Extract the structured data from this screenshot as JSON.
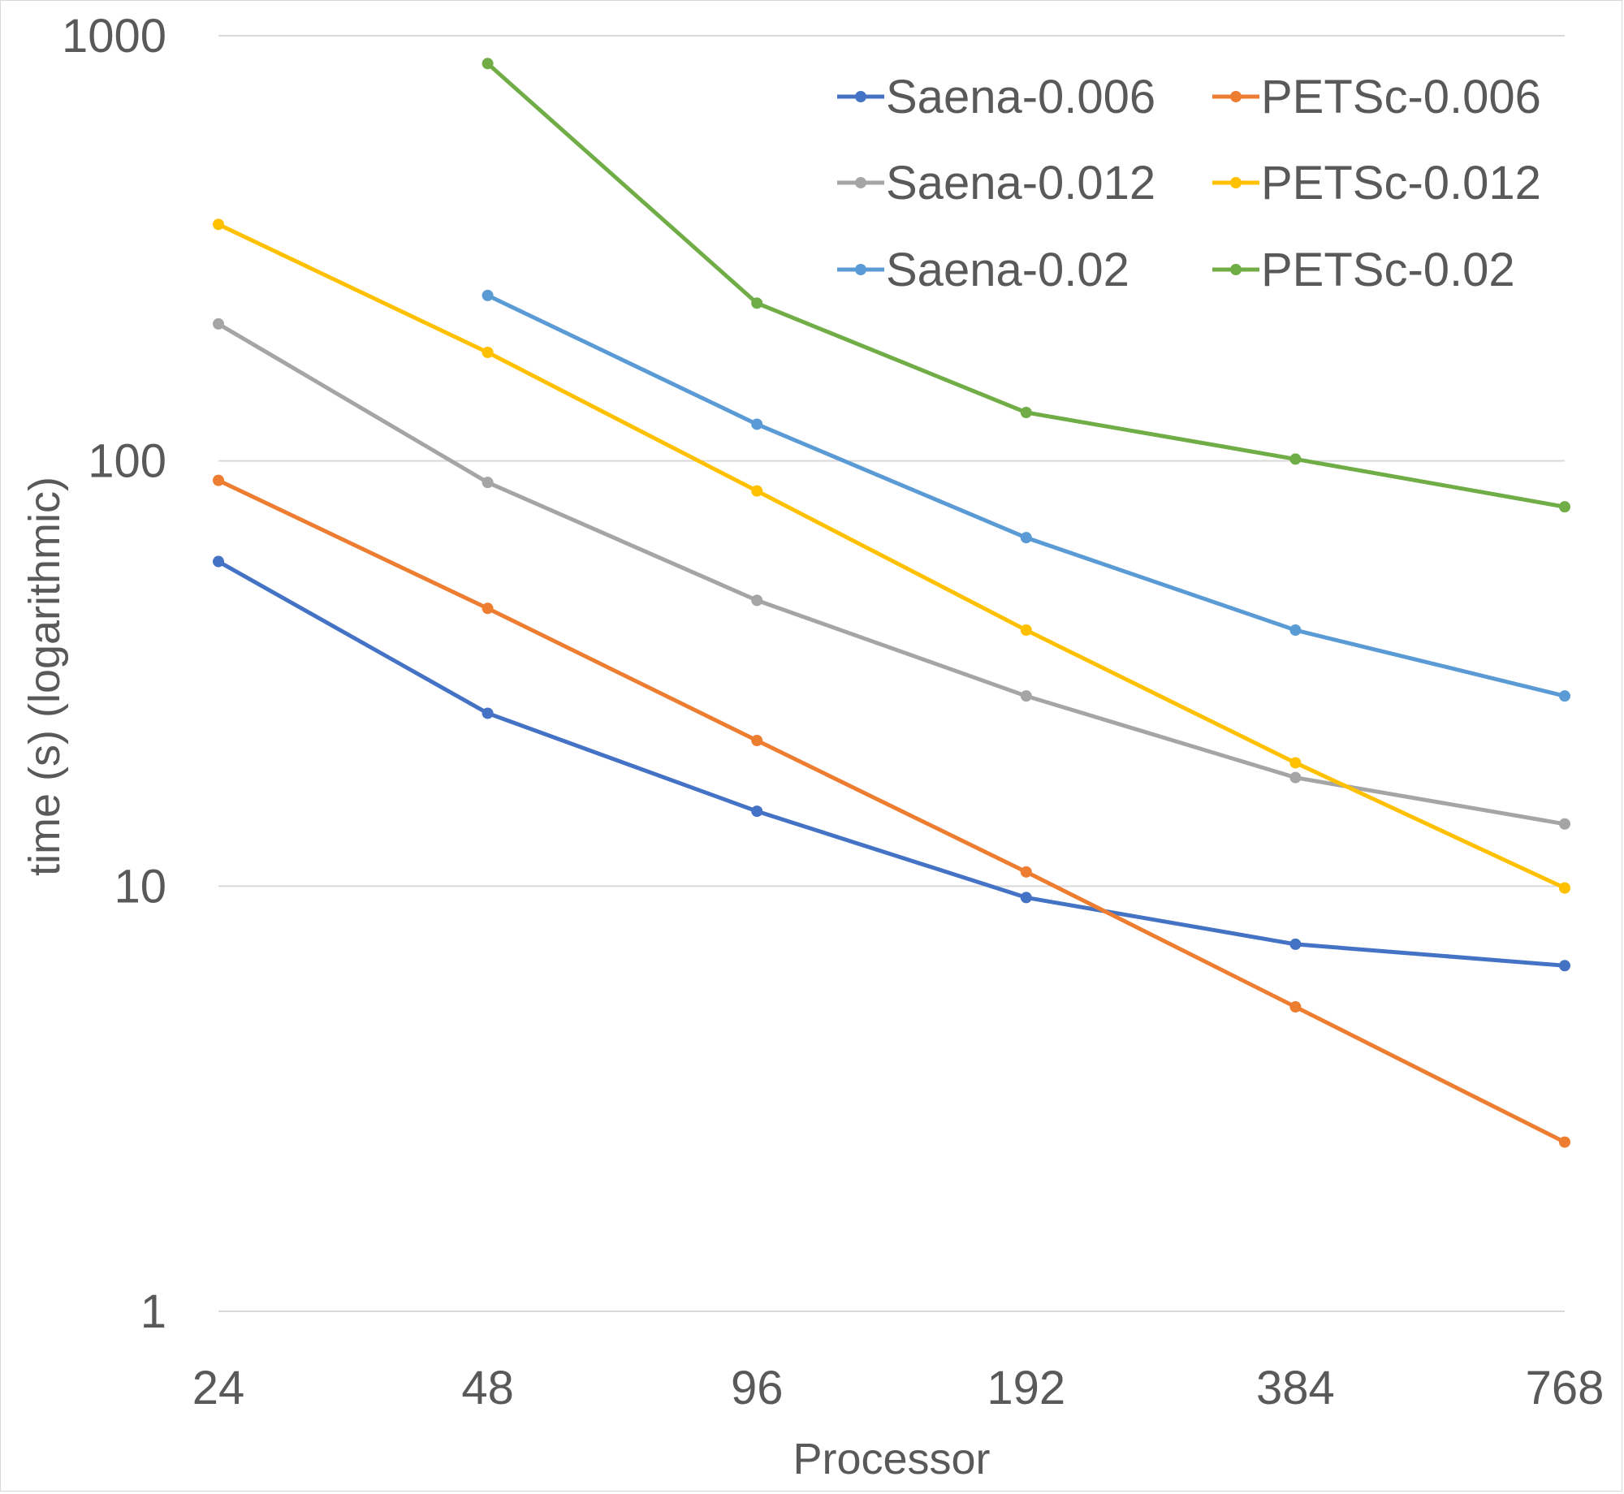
{
  "chart_data": {
    "type": "line",
    "xlabel": "Processor",
    "ylabel": "time (s) (logarithmic)",
    "y_scale": "log",
    "ylim": [
      1,
      1000
    ],
    "y_ticks": [
      "1",
      "10",
      "100",
      "1000"
    ],
    "categories": [
      "24",
      "48",
      "96",
      "192",
      "384",
      "768"
    ],
    "grid": "horizontal",
    "legend_position": "top-right",
    "series": [
      {
        "name": "Saena-0.006",
        "color": "#4472C4",
        "values": [
          58,
          25.5,
          15,
          9.4,
          7.3,
          6.5
        ]
      },
      {
        "name": "PETSc-0.006",
        "color": "#ED7D31",
        "values": [
          90,
          45,
          22,
          10.8,
          5.2,
          2.5
        ]
      },
      {
        "name": "Saena-0.012",
        "color": "#A5A5A5",
        "values": [
          210,
          89,
          47,
          28,
          18,
          14
        ]
      },
      {
        "name": "PETSc-0.012",
        "color": "#FFC000",
        "values": [
          360,
          180,
          85,
          40,
          19.5,
          9.9
        ]
      },
      {
        "name": "Saena-0.02",
        "color": "#5B9BD5",
        "values": [
          null,
          245,
          122,
          66,
          40,
          28
        ]
      },
      {
        "name": "PETSc-0.02",
        "color": "#70AD47",
        "values": [
          null,
          860,
          235,
          130,
          101,
          78
        ]
      }
    ]
  }
}
